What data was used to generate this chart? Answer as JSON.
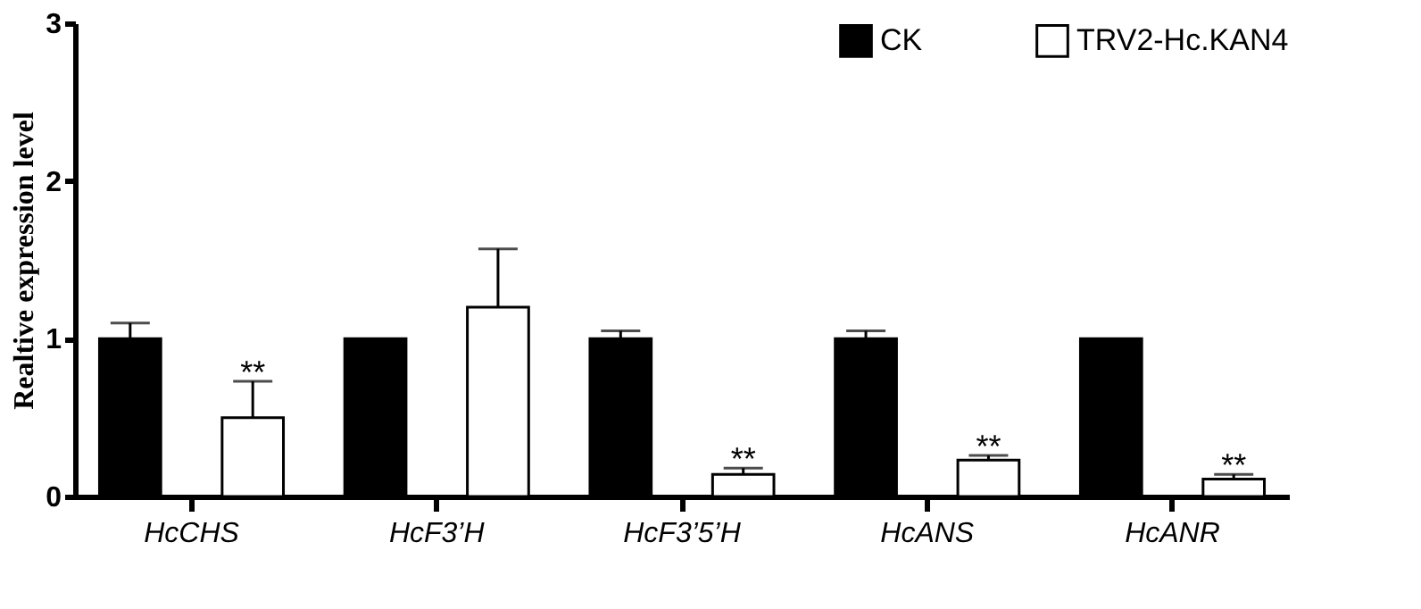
{
  "chart_data": {
    "type": "bar",
    "ylabel": "Realtive expression level",
    "categories": [
      "HcCHS",
      "HcF3’H",
      "HcF3’5’H",
      "HcANS",
      "HcANR"
    ],
    "series": [
      {
        "name": "CK",
        "color": "#000000",
        "values": [
          1,
          1,
          1,
          1,
          1
        ],
        "errors": [
          [
            1,
            1.1
          ],
          null,
          [
            1,
            1.05
          ],
          [
            1,
            1.05
          ],
          null
        ]
      },
      {
        "name": "TRV2-Hc.KAN4",
        "color": "#ffffff",
        "values": [
          0.5,
          1.2,
          0.14,
          0.23,
          0.11
        ],
        "value_labels": [
          "**",
          null,
          "**",
          "**",
          "**"
        ],
        "errors": [
          [
            0.5,
            0.73
          ],
          [
            1.2,
            1.57
          ],
          [
            0.14,
            0.18
          ],
          [
            0.23,
            0.26
          ],
          [
            0.11,
            0.14
          ]
        ]
      }
    ],
    "ylim": [
      0,
      3
    ],
    "yticks": [
      0,
      1,
      2,
      3
    ],
    "grid": false,
    "legend": "top right"
  }
}
